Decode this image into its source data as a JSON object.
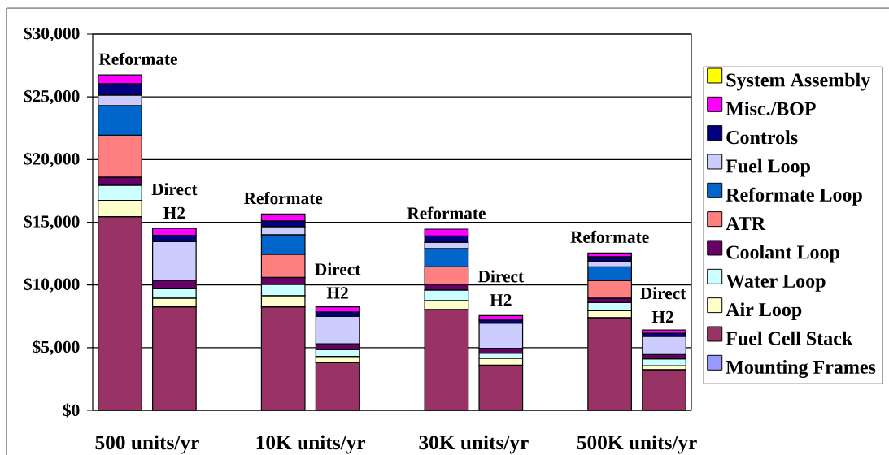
{
  "chart_data": {
    "type": "bar",
    "stacked": true,
    "categories": [
      null,
      null,
      null,
      null,
      null,
      null,
      null,
      null
    ],
    "annotations": [
      "500 units/yr",
      "10K units/yr",
      "30K units/yr",
      "500K units/yr",
      {
        "text": "Reformate",
        "y": 26750
      },
      {
        "text": "Direct H2",
        "y": 14500
      },
      {
        "text": "Reformate",
        "y": 15650
      },
      {
        "text": "Direct H2",
        "y": 8250
      },
      {
        "text": "Reformate",
        "y": 14450
      },
      {
        "text": "Direct H2",
        "y": 7550
      },
      {
        "text": "Reformate",
        "y": 12550
      },
      {
        "text": "Direct H2",
        "y": 6400
      }
    ],
    "series": [
      {
        "name": "Mounting Frames",
        "color": "#9999ff",
        "values": [
          null,
          null,
          null,
          null,
          null,
          null,
          null,
          null
        ]
      },
      {
        "name": "Fuel Cell Stack",
        "color": "#993366",
        "values": [
          15450,
          8250,
          8250,
          3800,
          8050,
          3600,
          7400,
          3250
        ]
      },
      {
        "name": "Air Loop",
        "color": "#ffffcc",
        "values": [
          1300,
          700,
          900,
          500,
          700,
          550,
          550,
          300
        ]
      },
      {
        "name": "Water Loop",
        "color": "#ccffff",
        "values": [
          1200,
          750,
          900,
          550,
          850,
          400,
          650,
          550
        ]
      },
      {
        "name": "Coolant Loop",
        "color": "#660066",
        "values": [
          650,
          650,
          550,
          450,
          450,
          400,
          350,
          350
        ]
      },
      {
        "name": "ATR",
        "color": "#ff8080",
        "values": [
          3350,
          0,
          1850,
          0,
          1400,
          0,
          1400,
          0
        ]
      },
      {
        "name": "Reformate Loop",
        "color": "#0066cc",
        "values": [
          2350,
          0,
          1550,
          0,
          1450,
          0,
          1100,
          0
        ]
      },
      {
        "name": "Fuel Loop",
        "color": "#ccccff",
        "values": [
          850,
          3100,
          650,
          2200,
          500,
          2000,
          450,
          1450
        ]
      },
      {
        "name": "Controls",
        "color": "#000080",
        "values": [
          900,
          500,
          450,
          350,
          500,
          250,
          350,
          250
        ]
      },
      {
        "name": "Misc./BOP",
        "color": "#ff00ff",
        "values": [
          700,
          550,
          550,
          400,
          550,
          350,
          300,
          250
        ]
      },
      {
        "name": "System Assembly",
        "color": "#ffff00",
        "values": [
          null,
          null,
          null,
          null,
          null,
          null,
          null,
          null
        ]
      }
    ],
    "ylim": [
      0,
      30000
    ],
    "yticks": [
      {
        "value": 0,
        "label": "$0"
      },
      {
        "value": 5000,
        "label": "$5,000"
      },
      {
        "value": 10000,
        "label": "$10,000"
      },
      {
        "value": 15000,
        "label": "$15,000"
      },
      {
        "value": 20000,
        "label": "$20,000"
      },
      {
        "value": 25000,
        "label": "$25,000"
      },
      {
        "value": 30000,
        "label": "$30,000"
      }
    ],
    "grid": "y",
    "legend": "right"
  }
}
